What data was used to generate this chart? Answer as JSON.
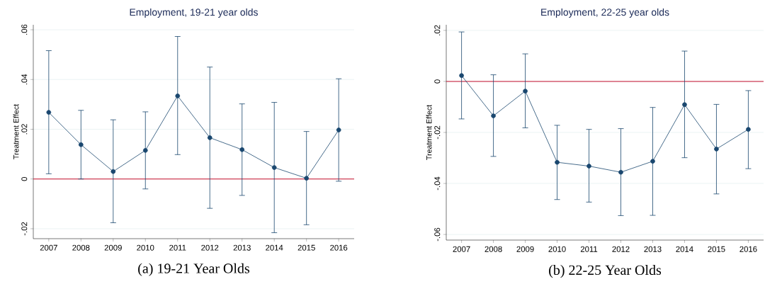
{
  "chart_data": [
    {
      "type": "line",
      "title": "Employment, 19-21 year olds",
      "ylabel": "Treatment Effect",
      "categories": [
        "2007",
        "2008",
        "2009",
        "2010",
        "2011",
        "2012",
        "2013",
        "2014",
        "2015",
        "2016"
      ],
      "series": [
        {
          "color": "#1a476f",
          "values": [
            0.0268,
            0.0138,
            0.003,
            0.0115,
            0.0334,
            0.0166,
            0.0118,
            0.0046,
            0.0003,
            0.0197
          ],
          "errors": [
            [
              0.0021,
              0.0516
            ],
            [
              0.0,
              0.0276
            ],
            [
              -0.0176,
              0.0238
            ],
            [
              -0.004,
              0.027
            ],
            [
              0.0098,
              0.0573
            ],
            [
              -0.0118,
              0.045
            ],
            [
              -0.0066,
              0.0302
            ],
            [
              -0.0216,
              0.0308
            ],
            [
              -0.0184,
              0.0191
            ],
            [
              -0.0009,
              0.0403
            ]
          ]
        }
      ],
      "ylim": [
        -0.024,
        0.062
      ],
      "yticks": [
        {
          "value": -0.02,
          "label": "-.02"
        },
        0,
        {
          "value": 0.02,
          "label": ".02"
        },
        {
          "value": 0.04,
          "label": ".04"
        },
        {
          "value": 0.06,
          "label": ".06"
        }
      ],
      "ref_lines": [
        {
          "axis": "y",
          "value": 0,
          "color": "#c8102e"
        }
      ],
      "grid": "y",
      "marker": "circle",
      "line_style": "solid",
      "annotations": [
        "(a) 19-21 Year Olds"
      ]
    },
    {
      "type": "line",
      "title": "Employment, 22-25 year olds",
      "ylabel": "Treatment Effect",
      "categories": [
        "2007",
        "2008",
        "2009",
        "2010",
        "2011",
        "2012",
        "2013",
        "2014",
        "2015",
        "2016"
      ],
      "series": [
        {
          "color": "#1a476f",
          "values": [
            0.0023,
            -0.0135,
            -0.0038,
            -0.0317,
            -0.0332,
            -0.0356,
            -0.0313,
            -0.0091,
            -0.0265,
            -0.0188
          ],
          "errors": [
            [
              -0.0147,
              0.0194
            ],
            [
              -0.0294,
              0.0026
            ],
            [
              -0.0182,
              0.0108
            ],
            [
              -0.0463,
              -0.0172
            ],
            [
              -0.0473,
              -0.0188
            ],
            [
              -0.0526,
              -0.0185
            ],
            [
              -0.0525,
              -0.0102
            ],
            [
              -0.0299,
              0.0119
            ],
            [
              -0.0441,
              -0.009
            ],
            [
              -0.0342,
              -0.0036
            ]
          ]
        }
      ],
      "ylim": [
        -0.0622,
        0.0222
      ],
      "yticks": [
        {
          "value": -0.06,
          "label": "-.06"
        },
        {
          "value": -0.04,
          "label": "-.04"
        },
        {
          "value": -0.02,
          "label": "-.02"
        },
        0,
        {
          "value": 0.02,
          "label": ".02"
        }
      ],
      "ref_lines": [
        {
          "axis": "y",
          "value": 0,
          "color": "#c8102e"
        }
      ],
      "grid": "y",
      "marker": "circle",
      "line_style": "solid",
      "annotations": [
        "(b) 22-25 Year Olds"
      ]
    }
  ]
}
